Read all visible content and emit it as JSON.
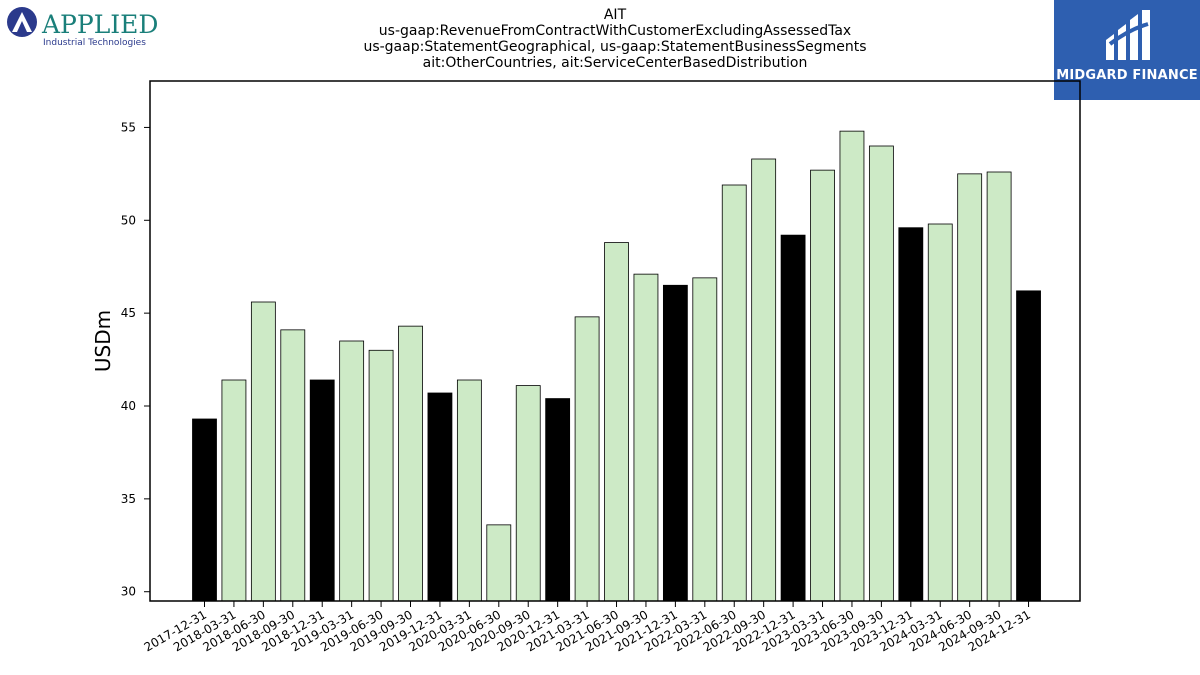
{
  "logos": {
    "left": {
      "name": "APPLIED",
      "tagline": "Industrial Technologies",
      "color": "#1a7f7a",
      "accent": "#2b3a8c"
    },
    "right": {
      "name": "MIDGARD FINANCE",
      "background": "#2e5fb0"
    }
  },
  "chart_data": {
    "type": "bar",
    "title": "AIT",
    "subtitle_lines": [
      "us-gaap:RevenueFromContractWithCustomerExcludingAssessedTax",
      "us-gaap:StatementGeographical, us-gaap:StatementBusinessSegments",
      "ait:OtherCountries, ait:ServiceCenterBasedDistribution"
    ],
    "ylabel": "USDm",
    "xlabel": "",
    "ylim": [
      29.5,
      57.5
    ],
    "yticks": [
      30,
      35,
      40,
      45,
      50,
      55
    ],
    "grid": false,
    "colors": {
      "annual": "#000000",
      "quarterly": "#cdeac6",
      "edge": "#000000"
    },
    "categories": [
      "2017-12-31",
      "2018-03-31",
      "2018-06-30",
      "2018-09-30",
      "2018-12-31",
      "2019-03-31",
      "2019-06-30",
      "2019-09-30",
      "2019-12-31",
      "2020-03-31",
      "2020-06-30",
      "2020-09-30",
      "2020-12-31",
      "2021-03-31",
      "2021-06-30",
      "2021-09-30",
      "2021-12-31",
      "2022-03-31",
      "2022-06-30",
      "2022-09-30",
      "2022-12-31",
      "2023-03-31",
      "2023-06-30",
      "2023-09-30",
      "2023-12-31",
      "2024-03-31",
      "2024-06-30",
      "2024-09-30",
      "2024-12-31"
    ],
    "values": [
      39.3,
      41.4,
      45.6,
      44.1,
      41.4,
      43.5,
      43.0,
      44.3,
      40.7,
      41.4,
      33.6,
      41.1,
      40.4,
      44.8,
      48.8,
      47.1,
      46.5,
      46.9,
      51.9,
      53.3,
      49.2,
      52.7,
      54.8,
      54.0,
      49.6,
      49.8,
      52.5,
      52.6,
      46.2
    ],
    "highlight": [
      true,
      false,
      false,
      false,
      true,
      false,
      false,
      false,
      true,
      false,
      false,
      false,
      true,
      false,
      false,
      false,
      true,
      false,
      false,
      false,
      true,
      false,
      false,
      false,
      true,
      false,
      false,
      false,
      true
    ]
  }
}
